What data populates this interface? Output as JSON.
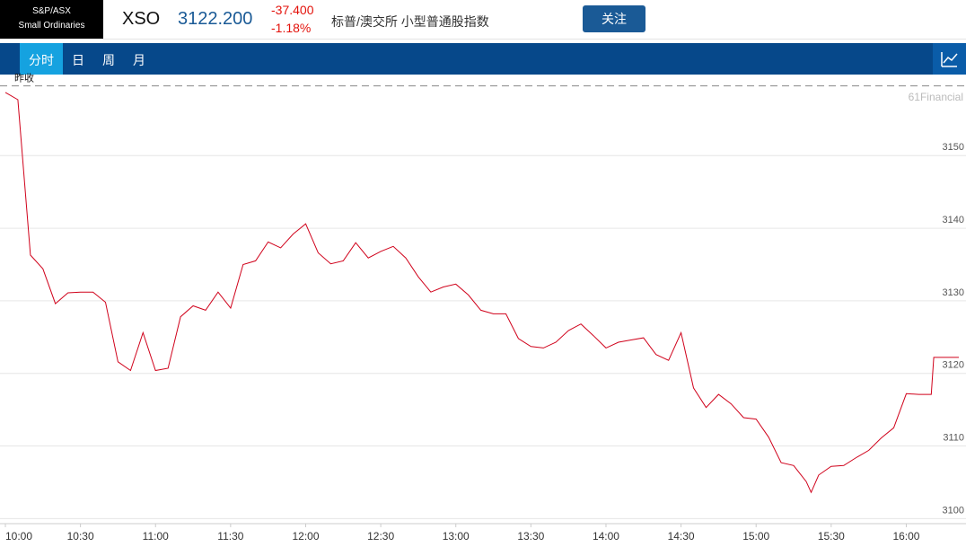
{
  "header": {
    "logo": [
      "S&P/ASX",
      "Small Ordinaries"
    ],
    "symbol": "XSO",
    "price": "3122.200",
    "change": "-37.400",
    "change_pct": "-1.18%",
    "name": "标普/澳交所 小型普通股指数",
    "button": "关注"
  },
  "tabs": [
    "分时",
    "日",
    "周",
    "月"
  ],
  "chart_data": {
    "type": "line",
    "watermark": "61Financial",
    "reference": {
      "label": "昨收",
      "value": 3159.6
    },
    "x": [
      0,
      5,
      10,
      15,
      20,
      25,
      30,
      35,
      40,
      45,
      50,
      55,
      60,
      65,
      70,
      75,
      80,
      85,
      90,
      95,
      100,
      105,
      110,
      115,
      120,
      125,
      130,
      135,
      140,
      145,
      150,
      155,
      160,
      165,
      170,
      175,
      180,
      185,
      190,
      195,
      200,
      205,
      210,
      215,
      220,
      225,
      230,
      235,
      240,
      245,
      250,
      255,
      260,
      265,
      270,
      275,
      280,
      285,
      290,
      295,
      300,
      305,
      310,
      315,
      320,
      322,
      325,
      330,
      335,
      340,
      345,
      350,
      355,
      360,
      365,
      370,
      371,
      375,
      381
    ],
    "series": [
      {
        "color": "#d0021b",
        "values": [
          3158.7,
          3157.7,
          3136.3,
          3134.4,
          3129.6,
          3131.1,
          3131.2,
          3131.2,
          3129.8,
          3121.6,
          3120.4,
          3125.6,
          3120.4,
          3120.7,
          3127.8,
          3129.3,
          3128.7,
          3131.2,
          3129.0,
          3135.0,
          3135.5,
          3138.1,
          3137.3,
          3139.2,
          3140.6,
          3136.6,
          3135.1,
          3135.5,
          3138.0,
          3135.9,
          3136.8,
          3137.5,
          3135.9,
          3133.3,
          3131.2,
          3131.9,
          3132.3,
          3130.8,
          3128.7,
          3128.2,
          3128.2,
          3124.8,
          3123.7,
          3123.5,
          3124.3,
          3125.9,
          3126.8,
          3125.2,
          3123.5,
          3124.3,
          3124.6,
          3124.9,
          3122.6,
          3121.8,
          3125.6,
          3118.0,
          3115.3,
          3117.1,
          3115.8,
          3113.9,
          3113.7,
          3111.2,
          3107.7,
          3107.3,
          3105.1,
          3103.6,
          3106.0,
          3107.2,
          3107.3,
          3108.4,
          3109.4,
          3111.1,
          3112.5,
          3117.2,
          3117.1,
          3117.1,
          3122.2,
          3122.2,
          3122.2
        ]
      }
    ],
    "xlim": [
      0,
      381
    ],
    "xticks": [
      {
        "value": 0,
        "label": "10:00"
      },
      {
        "value": 30,
        "label": "10:30"
      },
      {
        "value": 60,
        "label": "11:00"
      },
      {
        "value": 90,
        "label": "11:30"
      },
      {
        "value": 120,
        "label": "12:00"
      },
      {
        "value": 150,
        "label": "12:30"
      },
      {
        "value": 180,
        "label": "13:00"
      },
      {
        "value": 210,
        "label": "13:30"
      },
      {
        "value": 240,
        "label": "14:00"
      },
      {
        "value": 270,
        "label": "14:30"
      },
      {
        "value": 300,
        "label": "15:00"
      },
      {
        "value": 330,
        "label": "15:30"
      },
      {
        "value": 360,
        "label": "16:00"
      }
    ],
    "ylim": [
      3099.3,
      3160.3
    ],
    "yticks": [
      3100,
      3110,
      3120,
      3130,
      3140,
      3150
    ],
    "grid": true
  }
}
